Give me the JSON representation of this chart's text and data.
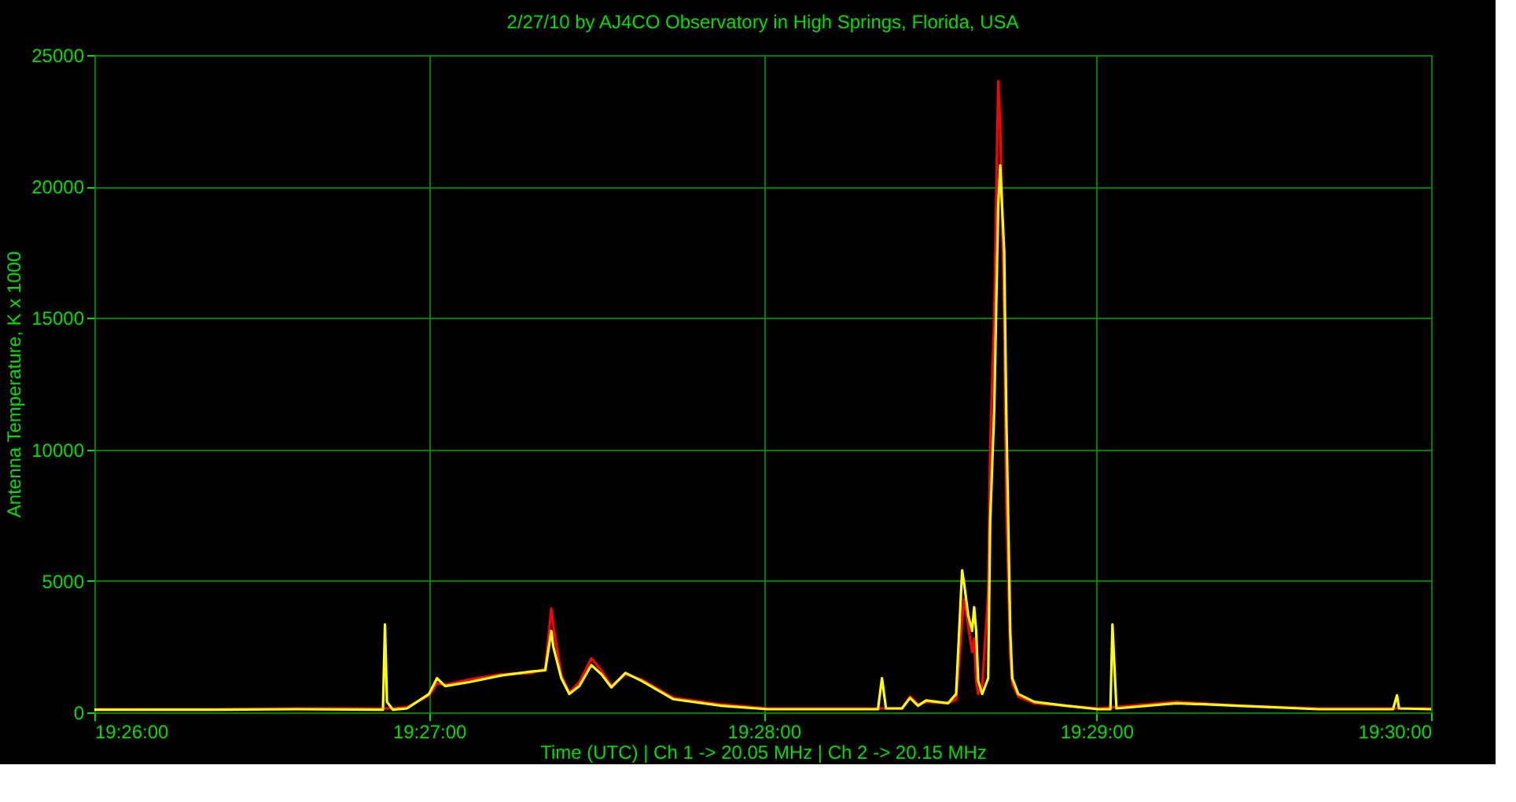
{
  "chart_data": {
    "type": "line",
    "title": "2/27/10  by  AJ4CO Observatory  in  High Springs, Florida, USA",
    "xlabel": "Time (UTC)  |  Ch 1 -> 20.05 MHz  |  Ch 2 -> 20.15 MHz",
    "ylabel": "Antenna Temperature, K x 1000",
    "xlim": [
      19.4333,
      19.5
    ],
    "ylim": [
      0,
      25000
    ],
    "xticks": [
      {
        "value": 19.4333,
        "label": "19:26:00"
      },
      {
        "value": 19.45,
        "label": "19:27:00"
      },
      {
        "value": 19.4667,
        "label": "19:28:00"
      },
      {
        "value": 19.4833,
        "label": "19:29:00"
      },
      {
        "value": 19.5,
        "label": "19:30:00"
      }
    ],
    "yticks": [
      0,
      5000,
      10000,
      15000,
      20000,
      25000
    ],
    "grid": true,
    "line_style": "solid",
    "marker": "none",
    "series": [
      {
        "color": "#ff0000",
        "x": [
          19.4333,
          19.4394,
          19.4434,
          19.4482,
          19.4489,
          19.45,
          19.4504,
          19.4508,
          19.452,
          19.4536,
          19.4551,
          19.4558,
          19.4561,
          19.4562,
          19.4566,
          19.457,
          19.4575,
          19.4581,
          19.4586,
          19.4591,
          19.4598,
          19.4606,
          19.4622,
          19.4646,
          19.4669,
          19.4724,
          19.4736,
          19.474,
          19.4744,
          19.4748,
          19.4759,
          19.4763,
          19.4766,
          19.4767,
          19.4769,
          19.4771,
          19.4772,
          19.4773,
          19.4774,
          19.4776,
          19.4779,
          19.478,
          19.4782,
          19.4784,
          19.4785,
          19.4787,
          19.4788,
          19.479,
          19.4791,
          19.4794,
          19.4802,
          19.4818,
          19.4834,
          19.4873,
          19.4904,
          19.4944,
          19.5
        ],
        "values": [
          120,
          120,
          150,
          150,
          200,
          650,
          1100,
          1050,
          1250,
          1450,
          1500,
          1650,
          3950,
          3300,
          1400,
          750,
          1150,
          2050,
          1600,
          1000,
          1450,
          1250,
          550,
          300,
          150,
          150,
          150,
          600,
          300,
          400,
          350,
          500,
          3500,
          4300,
          3300,
          2300,
          2800,
          1200,
          700,
          1000,
          4500,
          10200,
          15000,
          24000,
          22300,
          15000,
          8000,
          2200,
          1100,
          600,
          350,
          250,
          150,
          400,
          250,
          150,
          150
        ]
      },
      {
        "color": "#ffff00",
        "x": [
          19.4333,
          19.4394,
          19.4434,
          19.4477,
          19.4478,
          19.4479,
          19.4482,
          19.4489,
          19.45,
          19.4504,
          19.4508,
          19.452,
          19.4536,
          19.4551,
          19.4558,
          19.4561,
          19.4562,
          19.4566,
          19.457,
          19.4575,
          19.4581,
          19.4586,
          19.4591,
          19.4598,
          19.4606,
          19.4622,
          19.4646,
          19.4669,
          19.4724,
          19.4726,
          19.4728,
          19.4736,
          19.474,
          19.4744,
          19.4748,
          19.4759,
          19.4763,
          19.4766,
          19.4767,
          19.4769,
          19.4771,
          19.4772,
          19.4773,
          19.4774,
          19.4776,
          19.4779,
          19.478,
          19.4782,
          19.4784,
          19.4785,
          19.4787,
          19.4788,
          19.479,
          19.4791,
          19.4794,
          19.4802,
          19.4818,
          19.4834,
          19.484,
          19.4841,
          19.4843,
          19.4873,
          19.4904,
          19.4944,
          19.4981,
          19.4983,
          19.4984,
          19.5
        ],
        "values": [
          100,
          100,
          120,
          100,
          3350,
          400,
          100,
          150,
          700,
          1300,
          1000,
          1150,
          1400,
          1550,
          1600,
          3100,
          2500,
          1300,
          700,
          1000,
          1800,
          1450,
          950,
          1500,
          1200,
          500,
          250,
          120,
          120,
          1300,
          150,
          150,
          550,
          250,
          450,
          350,
          700,
          5400,
          4900,
          3700,
          3100,
          4000,
          3100,
          1200,
          700,
          1300,
          7300,
          11500,
          19300,
          20800,
          17500,
          11500,
          3100,
          1300,
          700,
          400,
          250,
          120,
          120,
          3350,
          150,
          350,
          250,
          120,
          120,
          650,
          150,
          120
        ]
      }
    ]
  }
}
